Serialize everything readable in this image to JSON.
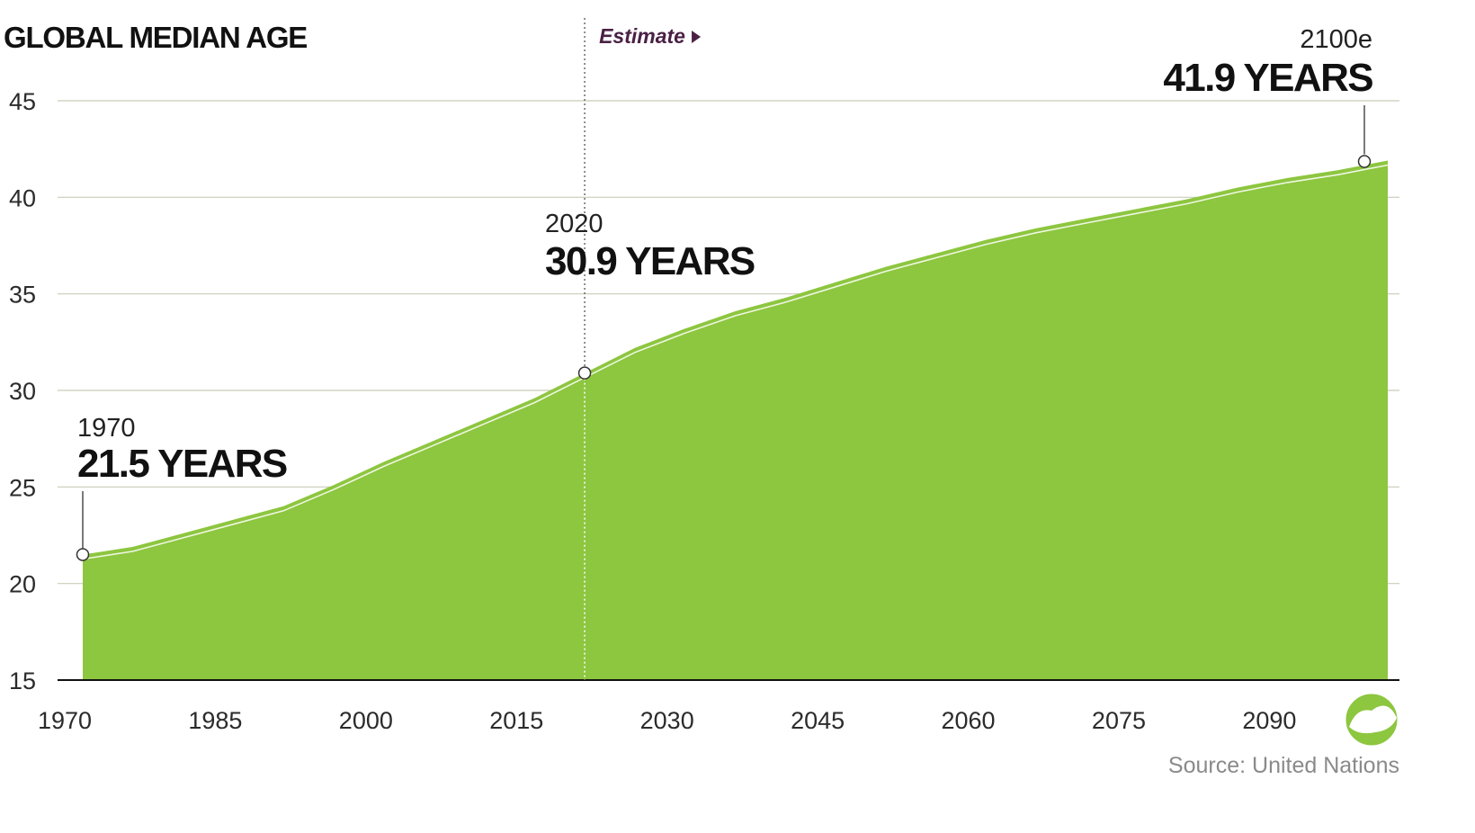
{
  "chart_data": {
    "type": "area",
    "title": "GLOBAL MEDIAN AGE",
    "xlabel": "",
    "ylabel": "",
    "ylim": [
      15,
      45
    ],
    "xlim": [
      1970,
      2100
    ],
    "x_ticks": [
      1970,
      1985,
      2000,
      2015,
      2030,
      2045,
      2060,
      2075,
      2090
    ],
    "y_ticks": [
      15,
      20,
      25,
      30,
      35,
      40,
      45
    ],
    "series": [
      {
        "name": "Median age",
        "color": "#8dc63f",
        "x": [
          1970,
          1975,
          1980,
          1985,
          1990,
          1995,
          2000,
          2005,
          2010,
          2015,
          2020,
          2025,
          2030,
          2035,
          2040,
          2045,
          2050,
          2055,
          2060,
          2065,
          2070,
          2075,
          2080,
          2085,
          2090,
          2095,
          2100
        ],
        "values": [
          21.5,
          21.9,
          22.6,
          23.3,
          24.0,
          25.1,
          26.3,
          27.4,
          28.5,
          29.6,
          30.9,
          32.2,
          33.2,
          34.1,
          34.8,
          35.6,
          36.4,
          37.1,
          37.8,
          38.4,
          38.9,
          39.4,
          39.9,
          40.5,
          41.0,
          41.4,
          41.9
        ]
      }
    ],
    "estimate_start": 2020,
    "estimate_label": "Estimate",
    "annotations": [
      {
        "x": 1970,
        "y": 21.5,
        "year_label": "1970",
        "value_label": "21.5 YEARS"
      },
      {
        "x": 2020,
        "y": 30.9,
        "year_label": "2020",
        "value_label": "30.9 YEARS"
      },
      {
        "x": 2100,
        "y": 41.9,
        "year_label": "2100e",
        "value_label": "41.9 YEARS"
      }
    ],
    "grid": true
  },
  "footer": {
    "source": "Source: United Nations",
    "logo_icon": "visual-capitalist-logo-icon"
  },
  "colors": {
    "area": "#8dc63f",
    "grid": "#c9ccb8",
    "axis": "#111111",
    "estimate": "#4a2145"
  }
}
